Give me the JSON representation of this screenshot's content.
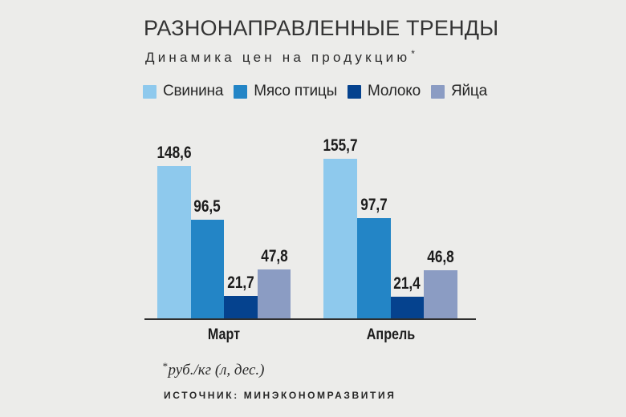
{
  "chart_data": {
    "type": "bar",
    "title": "РАЗНОНАПРАВЛЕННЫЕ ТРЕНДЫ",
    "subtitle": "Динамика цен на продукцию",
    "subtitle_mark": "*",
    "categories": [
      "Март",
      "Апрель"
    ],
    "category_keys": [
      "march",
      "april"
    ],
    "series": [
      {
        "key": "pork",
        "name": "Свинина",
        "color": "#8EC9ED",
        "values": [
          148.6,
          155.7
        ],
        "labels": [
          "148,6",
          "155,7"
        ]
      },
      {
        "key": "poultry",
        "name": "Мясо птицы",
        "color": "#2385C6",
        "values": [
          96.5,
          97.7
        ],
        "labels": [
          "96,5",
          "97,7"
        ]
      },
      {
        "key": "milk",
        "name": "Молоко",
        "color": "#05428E",
        "values": [
          21.7,
          21.4
        ],
        "labels": [
          "21,7",
          "21,4"
        ]
      },
      {
        "key": "eggs",
        "name": "Яйца",
        "color": "#8B9CC3",
        "values": [
          47.8,
          46.8
        ],
        "labels": [
          "47,8",
          "46,8"
        ]
      }
    ],
    "xlabel": "",
    "ylabel": "",
    "ylim": [
      0,
      160
    ],
    "grid": false,
    "legend_position": "top",
    "value_labels_shown": true
  },
  "footnote": {
    "asterisk": "*",
    "text": "руб./кг (л, дес.)"
  },
  "source": "ИСТОЧНИК: МИНЭКОНОМРАЗВИТИЯ",
  "colors": {
    "background": "#ECECEA",
    "axis": "#2E2E2E",
    "text": "#262626"
  }
}
